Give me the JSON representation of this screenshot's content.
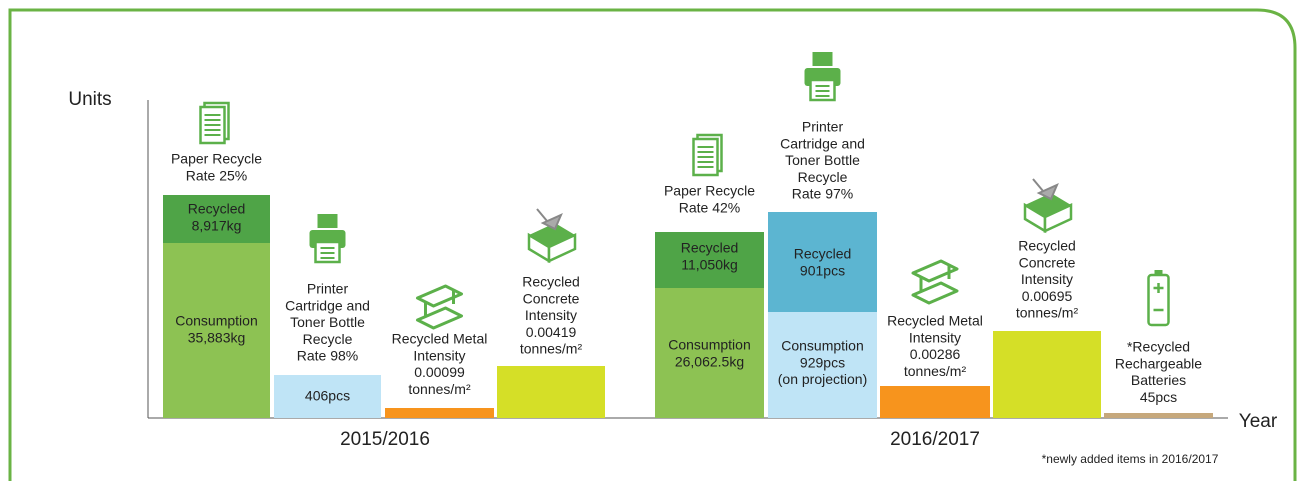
{
  "axis": {
    "y_label": "Units",
    "x_label": "Year"
  },
  "groups": [
    {
      "label": "2015/2016",
      "items": [
        {
          "caption": [
            "Paper Recycle",
            "Rate 25%"
          ],
          "segments": [
            {
              "lines": [
                "Recycled",
                "8,917kg"
              ]
            },
            {
              "lines": [
                "Consumption",
                "35,883kg"
              ]
            }
          ]
        },
        {
          "caption": [
            "Printer",
            "Cartridge and",
            "Toner Bottle",
            "Recycle",
            "Rate 98%"
          ],
          "segments": [
            {
              "lines": [
                "406pcs"
              ]
            }
          ]
        },
        {
          "caption": [
            "Recycled Metal",
            "Intensity",
            "0.00099",
            "tonnes/m²"
          ],
          "segments": []
        },
        {
          "caption": [
            "Recycled",
            "Concrete",
            "Intensity",
            "0.00419",
            "tonnes/m²"
          ],
          "segments": []
        }
      ]
    },
    {
      "label": "2016/2017",
      "items": [
        {
          "caption": [
            "Paper Recycle",
            "Rate 42%"
          ],
          "segments": [
            {
              "lines": [
                "Recycled",
                "11,050kg"
              ]
            },
            {
              "lines": [
                "Consumption",
                "26,062.5kg"
              ]
            }
          ]
        },
        {
          "caption": [
            "Printer",
            "Cartridge and",
            "Toner Bottle",
            "Recycle",
            "Rate 97%"
          ],
          "segments": [
            {
              "lines": [
                "Recycled",
                "901pcs"
              ]
            },
            {
              "lines": [
                "Consumption",
                "929pcs",
                "(on projection)"
              ]
            }
          ]
        },
        {
          "caption": [
            "Recycled Metal",
            "Intensity",
            "0.00286",
            "tonnes/m²"
          ],
          "segments": []
        },
        {
          "caption": [
            "Recycled",
            "Concrete",
            "Intensity",
            "0.00695",
            "tonnes/m²"
          ],
          "segments": []
        },
        {
          "caption": [
            "*Recycled",
            "Rechargeable",
            "Batteries",
            "45pcs"
          ],
          "segments": []
        }
      ]
    }
  ],
  "footnote": "*newly added items in 2016/2017"
}
